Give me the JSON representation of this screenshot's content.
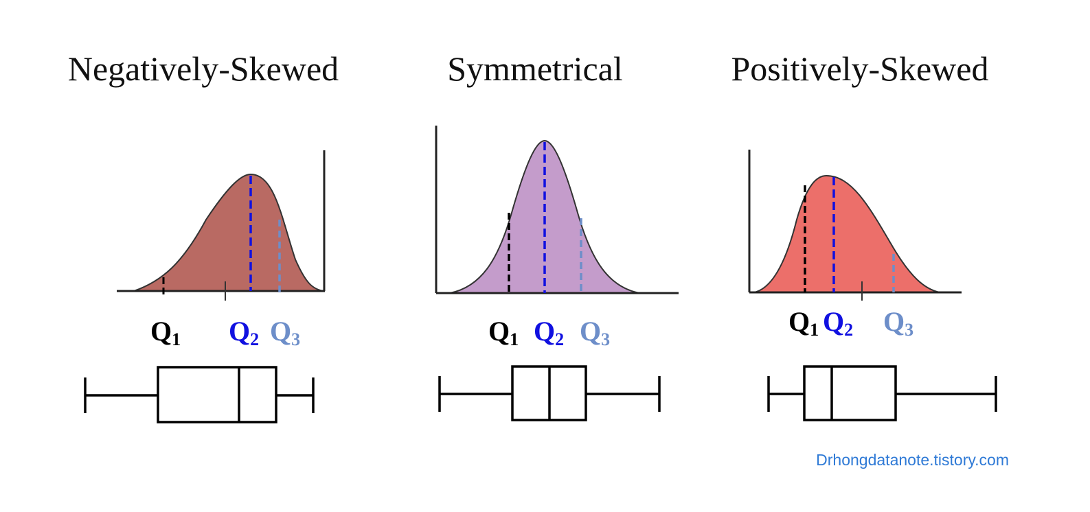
{
  "colors": {
    "q1": "#000000",
    "q2": "#1010e0",
    "q3": "#6d8ec9",
    "credit": "#2f7ad6",
    "panels": [
      "#b96a63",
      "#c49ccb",
      "#ec6f6a"
    ]
  },
  "panels": [
    {
      "title": "Negatively-Skewed",
      "skew": "negative",
      "q1": {
        "label": "Q",
        "sub": "1"
      },
      "q2": {
        "label": "Q",
        "sub": "2"
      },
      "q3": {
        "label": "Q",
        "sub": "3"
      }
    },
    {
      "title": "Symmetrical",
      "skew": "none",
      "q1": {
        "label": "Q",
        "sub": "1"
      },
      "q2": {
        "label": "Q",
        "sub": "2"
      },
      "q3": {
        "label": "Q",
        "sub": "3"
      }
    },
    {
      "title": "Positively-Skewed",
      "skew": "positive",
      "q1": {
        "label": "Q",
        "sub": "1"
      },
      "q2": {
        "label": "Q",
        "sub": "2"
      },
      "q3": {
        "label": "Q",
        "sub": "3"
      }
    }
  ],
  "credit": "Drhongdatanote.tistory.com"
}
